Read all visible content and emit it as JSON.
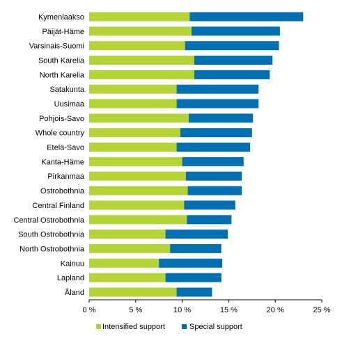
{
  "chart_data": {
    "type": "bar",
    "orientation": "horizontal",
    "stacked": true,
    "categories": [
      "Kymenlaakso",
      "Päijät-Häme",
      "Varsinais-Suomi",
      "South Karelia",
      "North Karelia",
      "Satakunta",
      "Uusimaa",
      "Pohjois-Savo",
      "Whole country",
      "Etelä-Savo",
      "Kanta-Häme",
      "Pirkanmaa",
      "Ostrobothnia",
      "Central Finland",
      "Central Ostrobothnia",
      "South Ostrobothnia",
      "North Ostrobothnia",
      "Kainuu",
      "Lapland",
      "Åland"
    ],
    "series": [
      {
        "name": "Intensified support",
        "color": "#b5d334",
        "values": [
          10.8,
          11.0,
          10.3,
          11.3,
          11.3,
          9.4,
          9.4,
          10.7,
          9.8,
          9.4,
          10.0,
          10.4,
          10.6,
          10.2,
          10.5,
          8.2,
          8.7,
          7.5,
          8.2,
          9.4
        ]
      },
      {
        "name": "Special support",
        "color": "#0070b2",
        "values": [
          12.2,
          9.5,
          10.1,
          8.4,
          8.1,
          8.8,
          8.8,
          6.9,
          7.7,
          7.9,
          6.6,
          6.0,
          5.8,
          5.5,
          4.8,
          6.7,
          5.5,
          6.8,
          6.0,
          3.8
        ]
      }
    ],
    "x_ticks": [
      "0 %",
      "5 %",
      "10 %",
      "15 %",
      "20 %",
      "25 %"
    ],
    "xlim": [
      0,
      25
    ],
    "grid": false,
    "legend_position": "bottom"
  }
}
